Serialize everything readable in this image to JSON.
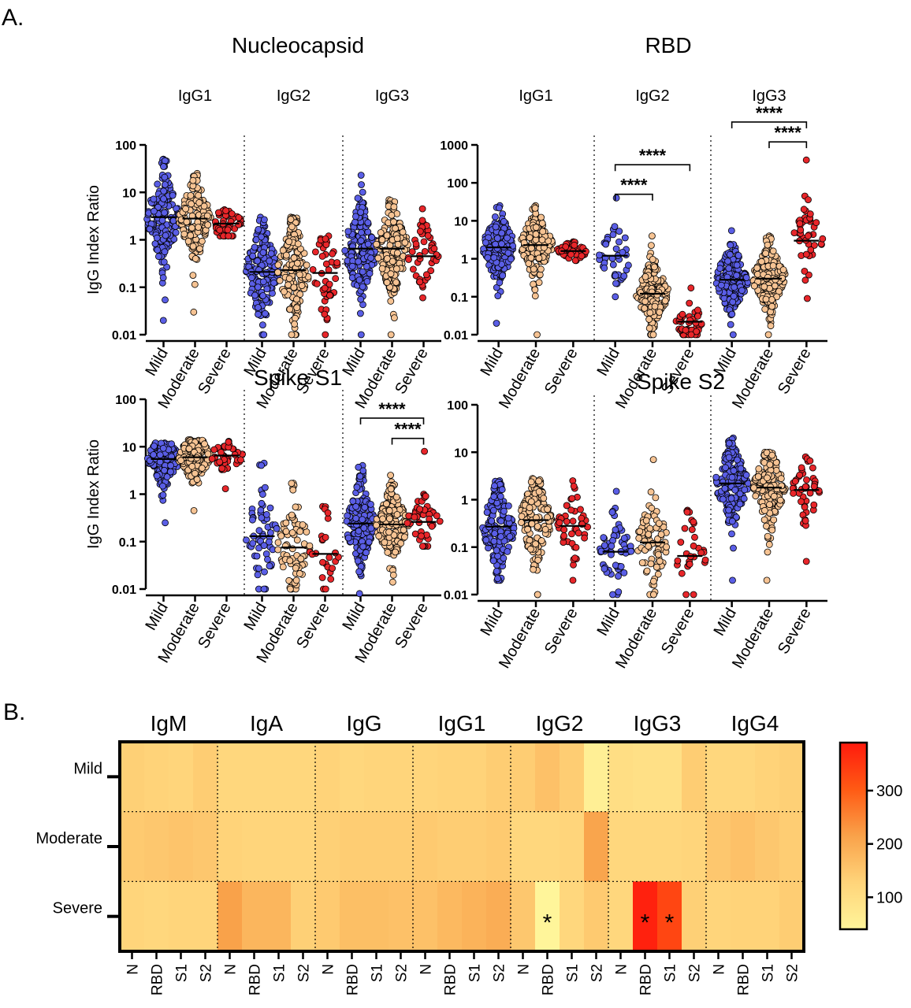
{
  "panel_labels": {
    "a": "A.",
    "b": "B."
  },
  "chart_data": [
    {
      "type": "scatter",
      "title": "Nucleocapsid",
      "ylabel": "IgG Index Ratio",
      "yscale": "log",
      "ylim": [
        0.01,
        100
      ],
      "yticks": [
        {
          "v": 0.01,
          "label": "0.01"
        },
        {
          "v": 0.1,
          "label": "0.1"
        },
        {
          "v": 1,
          "label": "1"
        },
        {
          "v": 10,
          "label": "10"
        },
        {
          "v": 100,
          "label": "100"
        }
      ],
      "categories": [
        "Mild",
        "Moderate",
        "Severe"
      ],
      "series": [
        {
          "name": "Mild",
          "color": "#5a5ee6"
        },
        {
          "name": "Moderate",
          "color": "#f6c393"
        },
        {
          "name": "Severe",
          "color": "#e8262a"
        }
      ],
      "show_category_labels": true,
      "groups": [
        {
          "name": "IgG1",
          "sig": [],
          "cols": [
            {
              "median": 3.0,
              "min": 0.02,
              "max": 50,
              "n": 170,
              "seed": 11,
              "spread": 0.55
            },
            {
              "median": 2.8,
              "min": 0.03,
              "max": 25,
              "n": 160,
              "seed": 12,
              "spread": 0.45
            },
            {
              "median": 2.2,
              "min": 1.2,
              "max": 4.3,
              "n": 45,
              "seed": 13,
              "spread": 0.2
            }
          ]
        },
        {
          "name": "IgG2",
          "sig": [],
          "cols": [
            {
              "median": 0.21,
              "min": 0.01,
              "max": 3.0,
              "n": 160,
              "seed": 21,
              "spread": 0.55
            },
            {
              "median": 0.23,
              "min": 0.01,
              "max": 3.0,
              "n": 170,
              "seed": 22,
              "spread": 0.55
            },
            {
              "median": 0.2,
              "min": 0.01,
              "max": 1.2,
              "n": 45,
              "seed": 23,
              "spread": 0.45
            }
          ]
        },
        {
          "name": "IgG3",
          "sig": [],
          "cols": [
            {
              "median": 0.65,
              "min": 0.01,
              "max": 23,
              "n": 170,
              "seed": 31,
              "spread": 0.55
            },
            {
              "median": 0.65,
              "min": 0.01,
              "max": 7.0,
              "n": 170,
              "seed": 32,
              "spread": 0.5
            },
            {
              "median": 0.45,
              "min": 0.06,
              "max": 4.5,
              "n": 45,
              "seed": 33,
              "spread": 0.35
            }
          ]
        }
      ]
    },
    {
      "type": "scatter",
      "title": "RBD",
      "ylabel": "",
      "yscale": "log",
      "ylim": [
        0.01,
        1000
      ],
      "yticks": [
        {
          "v": 0.01,
          "label": "0.01"
        },
        {
          "v": 0.1,
          "label": "0.1"
        },
        {
          "v": 1,
          "label": "1"
        },
        {
          "v": 10,
          "label": "10"
        },
        {
          "v": 100,
          "label": "100"
        },
        {
          "v": 1000,
          "label": "1000"
        }
      ],
      "categories": [
        "Mild",
        "Moderate",
        "Severe"
      ],
      "series": [
        {
          "name": "Mild",
          "color": "#5a5ee6"
        },
        {
          "name": "Moderate",
          "color": "#f6c393"
        },
        {
          "name": "Severe",
          "color": "#e8262a"
        }
      ],
      "show_category_labels": true,
      "groups": [
        {
          "name": "IgG1",
          "sig": [],
          "cols": [
            {
              "median": 2.0,
              "min": 0.02,
              "max": 25,
              "n": 170,
              "seed": 41,
              "spread": 0.5
            },
            {
              "median": 2.3,
              "min": 0.01,
              "max": 25,
              "n": 170,
              "seed": 42,
              "spread": 0.5
            },
            {
              "median": 1.6,
              "min": 0.9,
              "max": 2.8,
              "n": 45,
              "seed": 43,
              "spread": 0.15
            }
          ]
        },
        {
          "name": "IgG2",
          "sig": [
            {
              "from": 0,
              "to": 1,
              "label": "****",
              "y": 50
            },
            {
              "from": 0,
              "to": 2,
              "label": "****",
              "y": 300
            }
          ],
          "cols": [
            {
              "median": 1.2,
              "min": 0.1,
              "max": 40,
              "n": 40,
              "seed": 51,
              "spread": 0.5
            },
            {
              "median": 0.12,
              "min": 0.01,
              "max": 4.0,
              "n": 170,
              "seed": 52,
              "spread": 0.45
            },
            {
              "median": 0.022,
              "min": 0.01,
              "max": 0.17,
              "n": 45,
              "seed": 53,
              "spread": 0.3
            }
          ]
        },
        {
          "name": "IgG3",
          "sig": [
            {
              "from": 0,
              "to": 2,
              "label": "****",
              "y": 4000
            },
            {
              "from": 1,
              "to": 2,
              "label": "****",
              "y": 1200
            }
          ],
          "cols": [
            {
              "median": 0.28,
              "min": 0.01,
              "max": 5.5,
              "n": 170,
              "seed": 61,
              "spread": 0.5
            },
            {
              "median": 0.3,
              "min": 0.01,
              "max": 4.0,
              "n": 170,
              "seed": 62,
              "spread": 0.5
            },
            {
              "median": 3.0,
              "min": 0.09,
              "max": 400,
              "n": 45,
              "seed": 63,
              "spread": 0.5
            }
          ]
        }
      ]
    },
    {
      "type": "scatter",
      "title": "Spike S1",
      "ylabel": "IgG Index Ratio",
      "yscale": "log",
      "ylim": [
        0.01,
        100
      ],
      "yticks": [
        {
          "v": 0.01,
          "label": "0.01"
        },
        {
          "v": 0.1,
          "label": "0.1"
        },
        {
          "v": 1,
          "label": "1"
        },
        {
          "v": 10,
          "label": "10"
        },
        {
          "v": 100,
          "label": "100"
        }
      ],
      "categories": [
        "Mild",
        "Moderate",
        "Severe"
      ],
      "series": [
        {
          "name": "Mild",
          "color": "#5a5ee6"
        },
        {
          "name": "Moderate",
          "color": "#f6c393"
        },
        {
          "name": "Severe",
          "color": "#e8262a"
        }
      ],
      "show_category_labels": true,
      "groups": [
        {
          "name": "",
          "sig": [],
          "cols": [
            {
              "median": 5.5,
              "min": 0.25,
              "max": 12,
              "n": 150,
              "seed": 71,
              "spread": 0.3
            },
            {
              "median": 6.0,
              "min": 0.45,
              "max": 14,
              "n": 160,
              "seed": 72,
              "spread": 0.3
            },
            {
              "median": 6.5,
              "min": 1.3,
              "max": 13,
              "n": 45,
              "seed": 73,
              "spread": 0.2
            }
          ]
        },
        {
          "name": "",
          "sig": [],
          "cols": [
            {
              "median": 0.13,
              "min": 0.01,
              "max": 4.5,
              "n": 60,
              "seed": 81,
              "spread": 0.6
            },
            {
              "median": 0.075,
              "min": 0.01,
              "max": 1.7,
              "n": 80,
              "seed": 82,
              "spread": 0.55
            },
            {
              "median": 0.055,
              "min": 0.01,
              "max": 0.55,
              "n": 25,
              "seed": 83,
              "spread": 0.45
            }
          ]
        },
        {
          "name": "",
          "sig": [
            {
              "from": 0,
              "to": 2,
              "label": "****",
              "y": 40
            },
            {
              "from": 1,
              "to": 2,
              "label": "****",
              "y": 15
            }
          ],
          "cols": [
            {
              "median": 0.24,
              "min": 0.008,
              "max": 4.0,
              "n": 170,
              "seed": 91,
              "spread": 0.45
            },
            {
              "median": 0.23,
              "min": 0.014,
              "max": 2.5,
              "n": 170,
              "seed": 92,
              "spread": 0.4
            },
            {
              "median": 0.26,
              "min": 0.08,
              "max": 8.0,
              "n": 45,
              "seed": 93,
              "spread": 0.3
            }
          ]
        }
      ]
    },
    {
      "type": "scatter",
      "title": "Spike S2",
      "ylabel": "",
      "yscale": "log",
      "ylim": [
        0.01,
        100
      ],
      "yticks": [
        {
          "v": 0.01,
          "label": "0.01"
        },
        {
          "v": 0.1,
          "label": "0.1"
        },
        {
          "v": 1,
          "label": "1"
        },
        {
          "v": 10,
          "label": "10"
        },
        {
          "v": 100,
          "label": "100"
        }
      ],
      "categories": [
        "Mild",
        "Moderate",
        "Severe"
      ],
      "series": [
        {
          "name": "Mild",
          "color": "#5a5ee6"
        },
        {
          "name": "Moderate",
          "color": "#f6c393"
        },
        {
          "name": "Severe",
          "color": "#e8262a"
        }
      ],
      "show_category_labels": true,
      "groups": [
        {
          "name": "",
          "sig": [],
          "cols": [
            {
              "median": 0.27,
              "min": 0.02,
              "max": 2.5,
              "n": 170,
              "seed": 101,
              "spread": 0.5
            },
            {
              "median": 0.37,
              "min": 0.01,
              "max": 2.8,
              "n": 170,
              "seed": 102,
              "spread": 0.5
            },
            {
              "median": 0.28,
              "min": 0.02,
              "max": 2.5,
              "n": 45,
              "seed": 103,
              "spread": 0.4
            }
          ]
        },
        {
          "name": "",
          "sig": [],
          "cols": [
            {
              "median": 0.08,
              "min": 0.01,
              "max": 1.5,
              "n": 60,
              "seed": 111,
              "spread": 0.45
            },
            {
              "median": 0.125,
              "min": 0.01,
              "max": 7.0,
              "n": 80,
              "seed": 112,
              "spread": 0.5
            },
            {
              "median": 0.065,
              "min": 0.01,
              "max": 0.6,
              "n": 30,
              "seed": 113,
              "spread": 0.45
            }
          ]
        },
        {
          "name": "",
          "sig": [],
          "cols": [
            {
              "median": 2.2,
              "min": 0.02,
              "max": 20,
              "n": 170,
              "seed": 121,
              "spread": 0.45
            },
            {
              "median": 1.8,
              "min": 0.02,
              "max": 10,
              "n": 170,
              "seed": 122,
              "spread": 0.45
            },
            {
              "median": 1.6,
              "min": 0.05,
              "max": 8.0,
              "n": 45,
              "seed": 123,
              "spread": 0.35
            }
          ]
        }
      ]
    },
    {
      "type": "heatmap",
      "isotypes": [
        "IgM",
        "IgA",
        "IgG",
        "IgG1",
        "IgG2",
        "IgG3",
        "IgG4"
      ],
      "antigens": [
        "N",
        "RBD",
        "S1",
        "S2"
      ],
      "rows": [
        "Mild",
        "Moderate",
        "Severe"
      ],
      "values": [
        [
          135,
          130,
          125,
          140,
          120,
          120,
          120,
          120,
          130,
          120,
          125,
          125,
          125,
          130,
          130,
          140,
          140,
          160,
          140,
          55,
          100,
          95,
          95,
          140,
          120,
          120,
          130,
          135
        ],
        [
          145,
          150,
          155,
          150,
          130,
          125,
          125,
          125,
          135,
          140,
          140,
          140,
          145,
          140,
          140,
          145,
          120,
          120,
          125,
          210,
          120,
          120,
          120,
          125,
          150,
          160,
          150,
          140
        ],
        [
          125,
          120,
          125,
          125,
          215,
          180,
          180,
          135,
          145,
          165,
          165,
          160,
          160,
          175,
          185,
          195,
          150,
          40,
          120,
          145,
          120,
          380,
          330,
          135,
          125,
          130,
          130,
          140
        ]
      ],
      "stars": [
        {
          "row": 2,
          "col": 17,
          "label": "*"
        },
        {
          "row": 2,
          "col": 21,
          "label": "*"
        },
        {
          "row": 2,
          "col": 22,
          "label": "*"
        }
      ],
      "colorbar": {
        "min": 40,
        "max": 390,
        "ticks": [
          {
            "v": 100,
            "label": "100"
          },
          {
            "v": 200,
            "label": "200"
          },
          {
            "v": 300,
            "label": "300"
          }
        ],
        "colors": [
          "#fff59a",
          "#ffd47a",
          "#f9a24a",
          "#ff5a14",
          "#ff1a0d"
        ]
      }
    }
  ]
}
